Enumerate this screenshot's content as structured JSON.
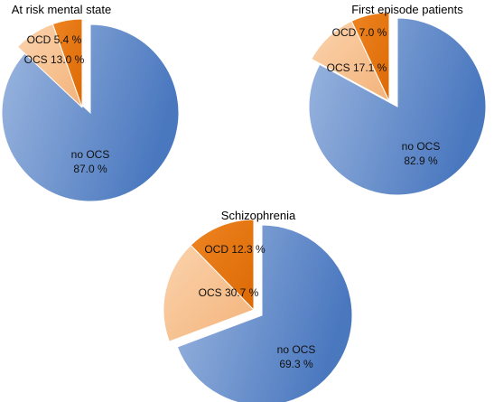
{
  "chart_data": [
    {
      "type": "pie",
      "title": "At risk mental state",
      "slices": [
        {
          "label": "no OCS",
          "value": 87.0,
          "text": "87.0 %"
        },
        {
          "label": "OCS",
          "value": 13.0,
          "text": "13.0 %"
        },
        {
          "label": "OCD",
          "value": 5.4,
          "text": "5.4 %"
        }
      ]
    },
    {
      "type": "pie",
      "title": "First episode patients",
      "slices": [
        {
          "label": "no OCS",
          "value": 82.9,
          "text": "82.9 %"
        },
        {
          "label": "OCS",
          "value": 17.1,
          "text": "17.1 %"
        },
        {
          "label": "OCD",
          "value": 7.0,
          "text": "7.0 %"
        }
      ]
    },
    {
      "type": "pie",
      "title": "Schizophrenia",
      "slices": [
        {
          "label": "no OCS",
          "value": 69.3,
          "text": "69.3 %"
        },
        {
          "label": "OCS",
          "value": 30.7,
          "text": "30.7 %"
        },
        {
          "label": "OCD",
          "value": 12.3,
          "text": "12.3 %"
        }
      ]
    }
  ],
  "colors": {
    "no_ocs": "#5b86c6",
    "ocs": "#f7c08f",
    "ocd": "#e8720c"
  }
}
